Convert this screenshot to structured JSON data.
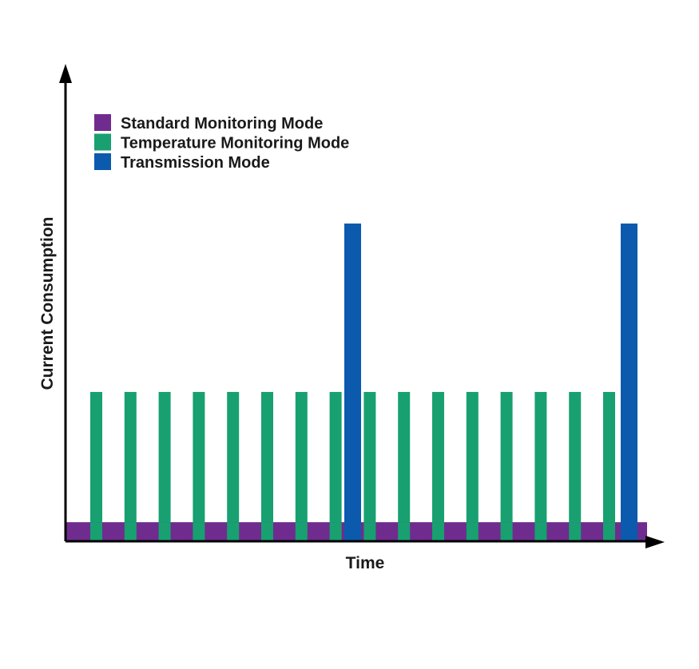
{
  "chart_data": {
    "type": "bar",
    "xlabel": "Time",
    "ylabel": "Current Consumption",
    "axis_ticks": false,
    "ylim": [
      0,
      100
    ],
    "legend": {
      "placement": "top-left",
      "entries": [
        {
          "name": "Standard Monitoring Mode",
          "color": "#6f2c8e"
        },
        {
          "name": "Temperature Monitoring Mode",
          "color": "#18a070"
        },
        {
          "name": "Transmission Mode",
          "color": "#0b5aad"
        }
      ]
    },
    "series": [
      {
        "name": "Standard Monitoring Mode",
        "color": "#6f2c8e",
        "pattern": "continuous baseline",
        "level": 6
      },
      {
        "name": "Temperature Monitoring Mode",
        "color": "#18a070",
        "pattern": "periodic pulses",
        "pulse_count": 16,
        "level": 47
      },
      {
        "name": "Transmission Mode",
        "color": "#0b5aad",
        "pattern": "periodic pulses",
        "pulse_count": 2,
        "level": 100
      }
    ]
  }
}
